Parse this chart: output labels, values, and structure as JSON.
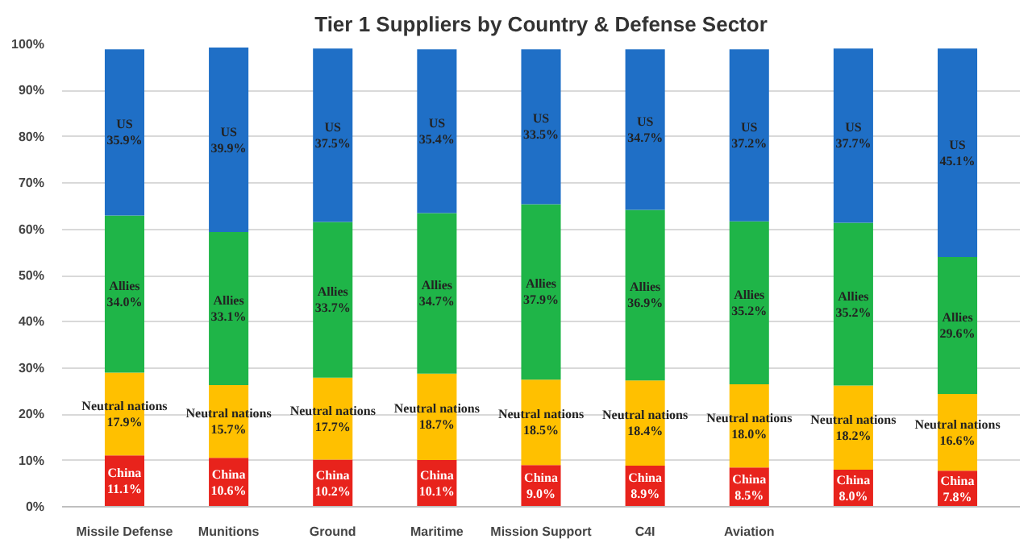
{
  "chart_data": {
    "type": "bar",
    "stacked": true,
    "title": "Tier 1 Suppliers by Country & Defense Sector",
    "categories": [
      "Missile Defense",
      "Munitions",
      "Ground",
      "Maritime",
      "Mission Support",
      "C4I",
      "Aviation",
      null,
      null
    ],
    "series": [
      {
        "name": "China",
        "color": "#e8231c",
        "values": [
          11.1,
          10.6,
          10.2,
          10.1,
          9.0,
          8.9,
          8.5,
          8.0,
          7.8
        ],
        "value_labels": [
          "11.1%",
          "10.6%",
          "10.2%",
          "10.1%",
          "9.0%",
          "8.9%",
          "8.5%",
          "8.0%",
          "7.8%"
        ]
      },
      {
        "name": "Neutral nations",
        "color": "#ffc000",
        "values": [
          17.9,
          15.7,
          17.7,
          18.7,
          18.5,
          18.4,
          18.0,
          18.2,
          16.6
        ],
        "value_labels": [
          "17.9%",
          "15.7%",
          "17.7%",
          "18.7%",
          "18.5%",
          "18.4%",
          "18.0%",
          "18.2%",
          "16.6%"
        ]
      },
      {
        "name": "Allies",
        "color": "#1fb548",
        "values": [
          34.0,
          33.1,
          33.7,
          34.7,
          37.9,
          36.9,
          35.2,
          35.2,
          29.6
        ],
        "value_labels": [
          "34.0%",
          "33.1%",
          "33.7%",
          "34.7%",
          "37.9%",
          "36.9%",
          "35.2%",
          "35.2%",
          "29.6%"
        ]
      },
      {
        "name": "US",
        "color": "#1f6fc6",
        "values": [
          35.9,
          39.9,
          37.5,
          35.4,
          33.5,
          34.7,
          37.2,
          37.7,
          45.1
        ],
        "value_labels": [
          "35.9%",
          "39.9%",
          "37.5%",
          "35.4%",
          "33.5%",
          "34.7%",
          "37.2%",
          "37.7%",
          "45.1%"
        ]
      }
    ],
    "ylim": [
      0,
      100
    ],
    "yticks": [
      {
        "value": 0,
        "label": "0%"
      },
      {
        "value": 10,
        "label": "10%"
      },
      {
        "value": 20,
        "label": "20%"
      },
      {
        "value": 30,
        "label": "30%"
      },
      {
        "value": 40,
        "label": "40%"
      },
      {
        "value": 50,
        "label": "50%"
      },
      {
        "value": 60,
        "label": "60%"
      },
      {
        "value": 70,
        "label": "70%"
      },
      {
        "value": 80,
        "label": "80%"
      },
      {
        "value": 90,
        "label": "90%"
      },
      {
        "value": 100,
        "label": "100%"
      }
    ],
    "grid": "y",
    "legend": false
  }
}
